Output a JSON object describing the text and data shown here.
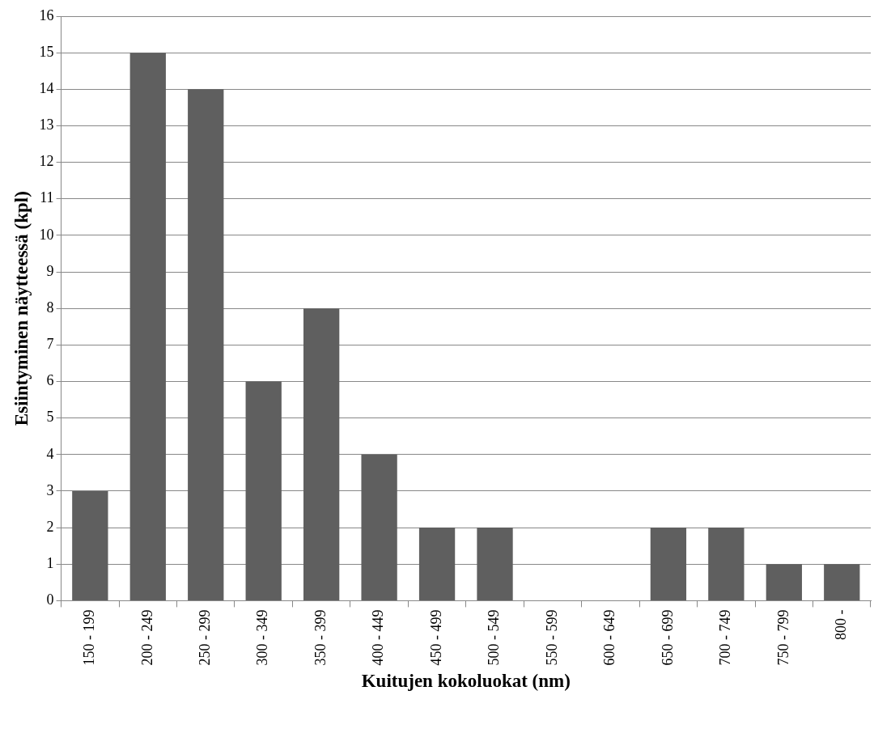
{
  "chart_data": {
    "type": "bar",
    "xlabel": "Kuitujen kokoluokat (nm)",
    "ylabel": "Esiintyminen näytteessä (kpl)",
    "categories": [
      "150 - 199",
      "200 - 249",
      "250 - 299",
      "300 - 349",
      "350 - 399",
      "400 - 449",
      "450 - 499",
      "500 - 549",
      "550 - 599",
      "600 - 649",
      "650 - 699",
      "700 - 749",
      "750 - 799",
      "800 -"
    ],
    "values": [
      3,
      15,
      14,
      6,
      8,
      4,
      2,
      2,
      0,
      0,
      2,
      2,
      1,
      1
    ],
    "color": "#5f5f5f",
    "ylim": [
      0,
      16
    ],
    "yticks": [
      0,
      1,
      2,
      3,
      4,
      5,
      6,
      7,
      8,
      9,
      10,
      11,
      12,
      13,
      14,
      15,
      16
    ],
    "grid": "y",
    "legend": false
  }
}
